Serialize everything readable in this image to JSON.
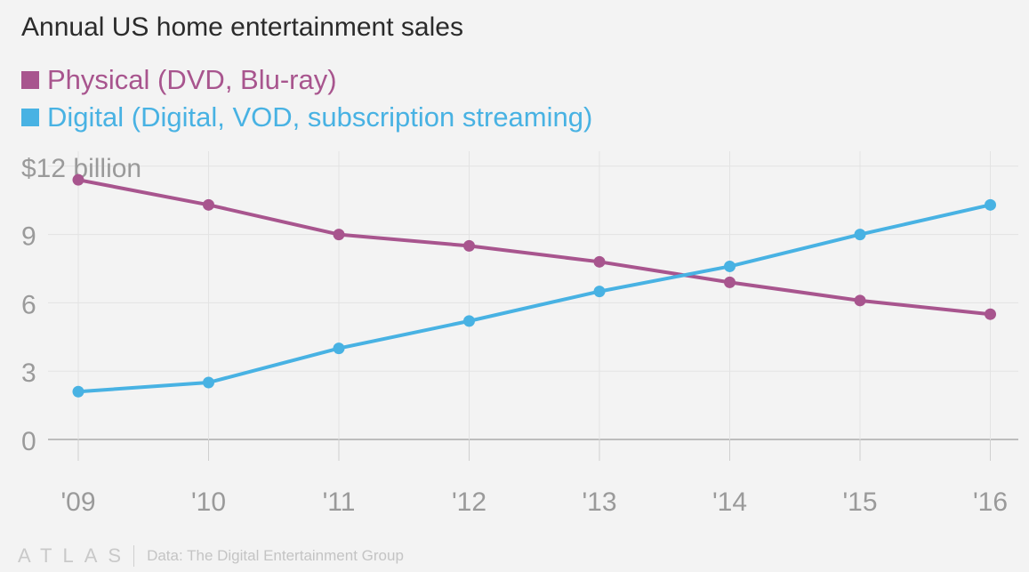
{
  "chart_data": {
    "type": "line",
    "title": "Annual US home entertainment sales",
    "categories": [
      "'09",
      "'10",
      "'11",
      "'12",
      "'13",
      "'14",
      "'15",
      "'16"
    ],
    "series": [
      {
        "name": "Physical (DVD, Blu-ray)",
        "color": "#a8558e",
        "values": [
          11.4,
          10.3,
          9.0,
          8.5,
          7.8,
          6.9,
          6.1,
          5.5
        ]
      },
      {
        "name": "Digital (Digital, VOD, subscription streaming)",
        "color": "#48b2e3",
        "values": [
          2.1,
          2.5,
          4.0,
          5.2,
          6.5,
          7.6,
          9.0,
          10.3
        ]
      }
    ],
    "y_ticks": [
      "0",
      "3",
      "6",
      "9",
      "$12 billion"
    ],
    "y_tick_values": [
      0,
      3,
      6,
      9,
      12
    ],
    "ylim": [
      0,
      12
    ],
    "grid": true,
    "legend_position": "top-left"
  },
  "footer": {
    "brand": "ATLAS",
    "source": "Data: The Digital Entertainment Group"
  }
}
